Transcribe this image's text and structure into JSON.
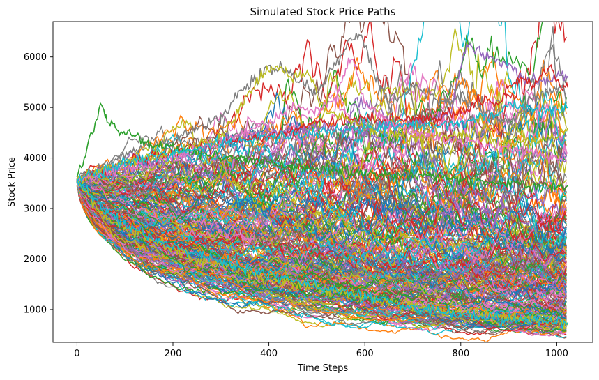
{
  "chart_data": {
    "type": "line",
    "title": "Simulated Stock Price Paths",
    "xlabel": "Time Steps",
    "ylabel": "Stock Price",
    "xlim": [
      -50,
      1075
    ],
    "ylim": [
      350,
      6700
    ],
    "xticks": [
      0,
      200,
      400,
      600,
      800,
      1000
    ],
    "yticks": [
      1000,
      2000,
      3000,
      4000,
      5000,
      6000
    ],
    "x_range": [
      0,
      1023
    ],
    "grid": false,
    "legend": "none",
    "palette": [
      "#1f77b4",
      "#ff7f0e",
      "#2ca02c",
      "#d62728",
      "#9467bd",
      "#8c564b",
      "#e377c2",
      "#7f7f7f",
      "#bcbd22",
      "#17becf"
    ],
    "series_summary": {
      "count_approx": 250,
      "start_value": 3550,
      "approx_min_at_end": 650,
      "approx_max_at_end": 5600,
      "band_center_at_end": 2000
    },
    "notable_paths": [
      {
        "color": "#7f7f7f",
        "x": [
          0,
          100,
          200,
          300,
          340,
          400,
          430,
          470,
          500,
          540,
          570,
          590,
          600,
          620,
          650,
          700,
          760,
          800,
          850,
          900,
          950,
          1000,
          1023
        ],
        "y": [
          3550,
          4100,
          4350,
          4800,
          5300,
          5800,
          5750,
          5500,
          5300,
          5900,
          6300,
          6420,
          6250,
          5600,
          5050,
          5450,
          5100,
          5200,
          4900,
          4700,
          5200,
          5350,
          5600
        ]
      },
      {
        "color": "#9467bd",
        "x": [
          0,
          100,
          200,
          300,
          400,
          500,
          600,
          700,
          780,
          800,
          815,
          840,
          870,
          900,
          940,
          970,
          1000,
          1023
        ],
        "y": [
          3550,
          3800,
          4000,
          4300,
          4500,
          4600,
          4550,
          4700,
          4900,
          5900,
          6250,
          6100,
          5950,
          5800,
          5550,
          5500,
          5600,
          5620
        ]
      },
      {
        "color": "#d62728",
        "x": [
          0,
          100,
          200,
          300,
          400,
          500,
          600,
          700,
          800,
          850,
          880,
          900,
          930,
          950,
          970,
          990,
          1000,
          1023
        ],
        "y": [
          3550,
          3900,
          4100,
          4300,
          4400,
          4700,
          4800,
          4750,
          4900,
          5200,
          5050,
          5400,
          5600,
          5400,
          5650,
          5800,
          5450,
          5400
        ]
      },
      {
        "color": "#bcbd22",
        "x": [
          0,
          100,
          200,
          300,
          360,
          390,
          420,
          450,
          480,
          500,
          520,
          560,
          600,
          650,
          700,
          800,
          900,
          1000,
          1023
        ],
        "y": [
          3550,
          3900,
          4100,
          4400,
          5300,
          5700,
          5800,
          5600,
          5700,
          5300,
          4900,
          4800,
          4600,
          4500,
          4400,
          4450,
          4300,
          4400,
          4600
        ]
      },
      {
        "color": "#e377c2",
        "x": [
          0,
          100,
          200,
          300,
          400,
          450,
          500,
          540,
          560,
          570,
          580,
          590,
          600,
          650,
          700,
          800,
          900,
          1000,
          1023
        ],
        "y": [
          3550,
          3800,
          4000,
          4300,
          4700,
          5000,
          4900,
          5200,
          5700,
          6000,
          5900,
          5400,
          5100,
          4700,
          4500,
          4300,
          4200,
          4000,
          4100
        ]
      },
      {
        "color": "#2ca02c",
        "x": [
          0,
          20,
          40,
          50,
          60,
          80,
          100,
          150,
          200,
          300,
          400,
          500,
          600,
          700,
          800,
          900,
          1000,
          1023
        ],
        "y": [
          3550,
          4200,
          4700,
          5080,
          4800,
          4600,
          4500,
          4300,
          4200,
          4000,
          3900,
          3800,
          3700,
          3650,
          3600,
          3500,
          3400,
          3450
        ]
      },
      {
        "color": "#17becf",
        "x": [
          0,
          100,
          200,
          300,
          400,
          500,
          600,
          700,
          800,
          850,
          880,
          900,
          950,
          1000,
          1023
        ],
        "y": [
          3550,
          3900,
          4100,
          4300,
          4400,
          4500,
          4600,
          4650,
          4700,
          4800,
          4850,
          5100,
          4900,
          4950,
          5000
        ]
      },
      {
        "color": "#bcbd22",
        "x": [
          0,
          50,
          100,
          150,
          200,
          250,
          300,
          350,
          400,
          450,
          500,
          550,
          600,
          650,
          700,
          750,
          800,
          850,
          900,
          950,
          1000,
          1023
        ],
        "y": [
          3550,
          2900,
          2600,
          2400,
          2200,
          2000,
          1900,
          1750,
          1650,
          1500,
          1450,
          1350,
          1250,
          1150,
          1100,
          1000,
          950,
          900,
          850,
          800,
          760,
          700
        ]
      },
      {
        "color": "#17becf",
        "x": [
          0,
          50,
          100,
          150,
          200,
          300,
          400,
          500,
          600,
          700,
          800,
          900,
          1000,
          1023
        ],
        "y": [
          3550,
          3000,
          2700,
          2450,
          2250,
          1950,
          1700,
          1450,
          1250,
          1050,
          900,
          800,
          750,
          740
        ]
      }
    ]
  }
}
